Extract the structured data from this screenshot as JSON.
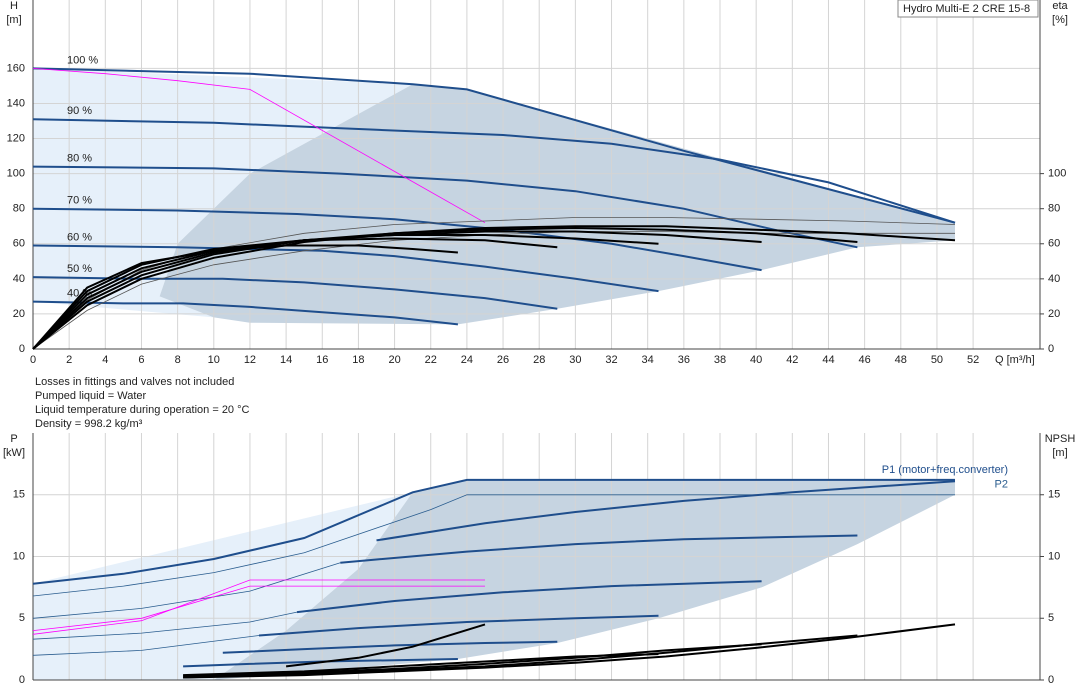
{
  "chart_data": [
    {
      "type": "line",
      "title": "Hydro Multi-E 2 CRE 15-8",
      "notes": [
        "Losses in fittings and valves not included",
        "Pumped liquid = Water",
        "Liquid temperature during operation = 20 °C",
        "Density = 998.2 kg/m³"
      ],
      "xlabel": "Q [m³/h]",
      "ylabel": [
        "H",
        "[m]"
      ],
      "y2label": [
        "eta",
        "[%]"
      ],
      "xlim": [
        0,
        55.7
      ],
      "xticks": [
        0,
        2,
        4,
        6,
        8,
        10,
        12,
        14,
        16,
        18,
        20,
        22,
        24,
        26,
        28,
        30,
        32,
        34,
        36,
        38,
        40,
        42,
        44,
        46,
        48,
        50,
        52
      ],
      "ylim": [
        0,
        199
      ],
      "yticks": [
        0,
        20,
        40,
        60,
        80,
        100,
        120,
        140,
        160
      ],
      "y2lim": [
        0,
        199
      ],
      "y2ticks": [
        0,
        20,
        40,
        60,
        80,
        100
      ],
      "grid": true,
      "xtick_labels": true,
      "series_label_at": "start",
      "regions": [
        {
          "color": "#e6f0fa",
          "x": [
            0,
            21,
            12,
            8,
            7,
            10,
            0
          ],
          "values": [
            160,
            151,
            100,
            60,
            30,
            18,
            27
          ]
        },
        {
          "color": "#c6d4e1",
          "x": [
            21,
            24,
            51,
            51,
            45.6,
            40.3,
            34.6,
            29,
            23.5,
            12,
            10,
            7,
            8,
            12
          ],
          "values": [
            151,
            148,
            72,
            62,
            58,
            45,
            33,
            23,
            14,
            15,
            18,
            30,
            60,
            100
          ]
        }
      ],
      "series": [
        {
          "name": "100 %",
          "color": "#1f4e8c",
          "style": "thick",
          "x": [
            0,
            12,
            21,
            24,
            36,
            51
          ],
          "values": [
            160,
            157,
            151,
            148,
            113,
            72
          ]
        },
        {
          "name": "90 %",
          "color": "#1f4e8c",
          "style": "thick",
          "x": [
            0,
            10,
            19,
            26,
            32,
            38,
            44,
            51
          ],
          "values": [
            131,
            129,
            125,
            122,
            117,
            108,
            95,
            72
          ]
        },
        {
          "name": "80 %",
          "color": "#1f4e8c",
          "style": "thick",
          "x": [
            0,
            10,
            17,
            24,
            30,
            36,
            41,
            45.6
          ],
          "values": [
            104,
            103,
            100,
            96,
            90,
            80,
            68,
            58
          ]
        },
        {
          "name": "70 %",
          "color": "#1f4e8c",
          "style": "thick",
          "x": [
            0,
            8,
            14.6,
            20,
            26,
            32,
            36,
            40.3
          ],
          "values": [
            80,
            79,
            77,
            74,
            68,
            60,
            53,
            45
          ]
        },
        {
          "name": "60 %",
          "color": "#1f4e8c",
          "style": "thick",
          "x": [
            0,
            8,
            16,
            20,
            25,
            30,
            34.6
          ],
          "values": [
            59,
            58,
            56,
            53,
            47,
            40,
            33
          ]
        },
        {
          "name": "50 %",
          "color": "#1f4e8c",
          "style": "thick",
          "x": [
            0,
            6,
            10.5,
            15,
            20,
            25,
            29
          ],
          "values": [
            41,
            40,
            40,
            38,
            34,
            29,
            23
          ]
        },
        {
          "name": "40 %",
          "color": "#1f4e8c",
          "style": "thick",
          "x": [
            0,
            5,
            8.3,
            12,
            16,
            20,
            23.5
          ],
          "values": [
            27,
            26,
            26,
            24,
            21,
            18,
            14
          ]
        },
        {
          "color": "#ff00ff",
          "style": "thin",
          "x": [
            0,
            4,
            8,
            12,
            25
          ],
          "values": [
            160,
            157,
            153,
            148,
            72
          ]
        },
        {
          "color": "#555555",
          "style": "thin",
          "axis": "y2",
          "x": [
            0,
            3,
            6,
            10,
            15,
            20,
            25,
            30,
            35,
            40,
            45,
            51
          ],
          "values": [
            0,
            28,
            45,
            57,
            66,
            71,
            73,
            75,
            75,
            74,
            73,
            71
          ]
        },
        {
          "color": "#555555",
          "style": "thin",
          "axis": "y2",
          "x": [
            0,
            3,
            6,
            10,
            15,
            20,
            25,
            30,
            35,
            40,
            45,
            51
          ],
          "values": [
            0,
            22,
            37,
            48,
            56,
            62,
            65,
            67,
            67,
            66,
            66,
            66
          ]
        },
        {
          "color": "#000000",
          "style": "thick",
          "axis": "y2",
          "x": [
            0,
            3,
            6,
            10,
            15,
            20,
            25,
            30,
            35,
            40,
            45,
            51
          ],
          "values": [
            0,
            25,
            40,
            52,
            61,
            66,
            69,
            70,
            70,
            68,
            66,
            62
          ]
        },
        {
          "color": "#000000",
          "style": "thick",
          "axis": "y2",
          "x": [
            0,
            3,
            6,
            10,
            15,
            20,
            25,
            30,
            35,
            40,
            45.6
          ],
          "values": [
            0,
            27,
            42,
            54,
            62,
            66,
            68,
            69,
            68,
            66,
            61
          ]
        },
        {
          "color": "#000000",
          "style": "thick",
          "axis": "y2",
          "x": [
            0,
            3,
            6,
            10,
            15,
            20,
            25,
            30,
            35,
            40.3
          ],
          "values": [
            0,
            29,
            44,
            55,
            62,
            65,
            67,
            67,
            65,
            61
          ]
        },
        {
          "color": "#000000",
          "style": "thick",
          "axis": "y2",
          "x": [
            0,
            3,
            6,
            10,
            15,
            20,
            25,
            30,
            34.6
          ],
          "values": [
            0,
            31,
            46,
            56,
            62,
            65,
            65,
            63,
            60
          ]
        },
        {
          "color": "#000000",
          "style": "thick",
          "axis": "y2",
          "x": [
            0,
            3,
            6,
            10,
            15,
            20,
            25,
            29
          ],
          "values": [
            0,
            33,
            48,
            57,
            62,
            63,
            62,
            58
          ]
        },
        {
          "color": "#000000",
          "style": "thick",
          "axis": "y2",
          "x": [
            0,
            3,
            6,
            10,
            14,
            18,
            21,
            23.5
          ],
          "values": [
            0,
            35,
            49,
            56,
            59,
            59,
            57,
            55
          ]
        }
      ]
    },
    {
      "type": "line",
      "ylabel": [
        "P",
        "[kW]"
      ],
      "y2label": [
        "NPSH",
        "[m]"
      ],
      "xlim": [
        0,
        55.7
      ],
      "xticks": [
        0,
        2,
        4,
        6,
        8,
        10,
        12,
        14,
        16,
        18,
        20,
        22,
        24,
        26,
        28,
        30,
        32,
        34,
        36,
        38,
        40,
        42,
        44,
        46,
        48,
        50,
        52
      ],
      "ylim": [
        0,
        20
      ],
      "yticks": [
        0,
        5,
        10,
        15
      ],
      "y2lim": [
        0,
        20
      ],
      "y2ticks": [
        0,
        5,
        10,
        15
      ],
      "grid": true,
      "xtick_labels": false,
      "series_label_at": "end",
      "regions": [
        {
          "color": "#e6f0fa",
          "x": [
            0,
            21,
            18,
            14,
            10,
            0
          ],
          "values": [
            7.8,
            15.2,
            9,
            4,
            0,
            0
          ]
        },
        {
          "color": "#c6d4e1",
          "x": [
            21,
            24,
            51,
            51,
            45.6,
            40.3,
            34.6,
            29,
            23.5,
            10,
            14,
            18
          ],
          "values": [
            15.2,
            16.2,
            16.2,
            15,
            11,
            7.5,
            5,
            3,
            1.7,
            0,
            4,
            9
          ]
        }
      ],
      "series": [
        {
          "name": "P1 (motor+freq.converter)",
          "color": "#1f4e8c",
          "style": "thick",
          "x": [
            0,
            5,
            10,
            15,
            21,
            24,
            36,
            51
          ],
          "values": [
            7.8,
            8.6,
            9.8,
            11.5,
            15.2,
            16.2,
            16.2,
            16.2
          ]
        },
        {
          "name": "P2",
          "color": "#2a5d8f",
          "style": "thin",
          "x": [
            0,
            5,
            10,
            15,
            22,
            24,
            51
          ],
          "values": [
            6.8,
            7.6,
            8.7,
            10.3,
            13.8,
            15,
            15
          ]
        },
        {
          "color": "#1f4e8c",
          "style": "thick",
          "x": [
            19,
            25,
            30,
            36,
            42,
            51
          ],
          "values": [
            11.3,
            12.7,
            13.6,
            14.5,
            15.2,
            16.1
          ]
        },
        {
          "color": "#1f4e8c",
          "style": "thick",
          "x": [
            17,
            24,
            30,
            36,
            45.6
          ],
          "values": [
            9.5,
            10.4,
            11,
            11.4,
            11.7
          ]
        },
        {
          "color": "#1f4e8c",
          "style": "thick",
          "x": [
            14.6,
            20,
            26,
            32,
            40.3
          ],
          "values": [
            5.5,
            6.4,
            7.1,
            7.6,
            8
          ]
        },
        {
          "color": "#1f4e8c",
          "style": "thick",
          "x": [
            12.5,
            18,
            24,
            30,
            34.6
          ],
          "values": [
            3.6,
            4.2,
            4.7,
            5,
            5.2
          ]
        },
        {
          "color": "#1f4e8c",
          "style": "thick",
          "x": [
            10.5,
            15,
            20,
            25,
            29
          ],
          "values": [
            2.2,
            2.5,
            2.8,
            3,
            3.1
          ]
        },
        {
          "color": "#1f4e8c",
          "style": "thick",
          "x": [
            8.3,
            12,
            16,
            20,
            23.5
          ],
          "values": [
            1.1,
            1.3,
            1.5,
            1.6,
            1.7
          ]
        },
        {
          "color": "#2a5d8f",
          "style": "thin",
          "x": [
            0,
            6,
            12,
            17
          ],
          "values": [
            5,
            5.8,
            7.2,
            9.5
          ]
        },
        {
          "color": "#2a5d8f",
          "style": "thin",
          "x": [
            0,
            6,
            12,
            14.6
          ],
          "values": [
            3.3,
            3.8,
            4.7,
            5.5
          ]
        },
        {
          "color": "#2a5d8f",
          "style": "thin",
          "x": [
            0,
            6,
            12.5
          ],
          "values": [
            2,
            2.4,
            3.6
          ]
        },
        {
          "color": "#ff00ff",
          "style": "thin",
          "x": [
            0,
            6,
            12,
            25
          ],
          "values": [
            3.7,
            4.8,
            8.1,
            8.1
          ]
        },
        {
          "color": "#ff00ff",
          "style": "thin",
          "x": [
            0,
            6,
            12,
            25
          ],
          "values": [
            4,
            5,
            7.6,
            7.6
          ]
        },
        {
          "color": "#000000",
          "style": "thick",
          "axis": "y2",
          "x": [
            8.3,
            15,
            20,
            25,
            30,
            35,
            40,
            45,
            51
          ],
          "values": [
            0.2,
            0.4,
            0.7,
            1,
            1.4,
            1.9,
            2.6,
            3.4,
            4.5
          ]
        },
        {
          "color": "#000000",
          "style": "thick",
          "axis": "y2",
          "x": [
            8.3,
            15,
            20,
            25,
            30,
            35,
            40,
            45.6
          ],
          "values": [
            0.2,
            0.5,
            0.8,
            1.1,
            1.6,
            2.2,
            2.9,
            3.6
          ]
        },
        {
          "color": "#000000",
          "style": "thick",
          "axis": "y2",
          "x": [
            8.3,
            15,
            20,
            25,
            30,
            35,
            40.3
          ],
          "values": [
            0.3,
            0.6,
            0.9,
            1.3,
            1.8,
            2.4,
            2.9
          ]
        },
        {
          "color": "#000000",
          "style": "thick",
          "axis": "y2",
          "x": [
            8.3,
            15,
            20,
            25,
            30,
            34.6
          ],
          "values": [
            0.4,
            0.7,
            1.1,
            1.5,
            1.9,
            2.1
          ]
        },
        {
          "color": "#000000",
          "style": "thick",
          "axis": "y2",
          "x": [
            14,
            18,
            21,
            25
          ],
          "values": [
            1.1,
            1.8,
            2.7,
            4.5
          ]
        }
      ]
    }
  ]
}
